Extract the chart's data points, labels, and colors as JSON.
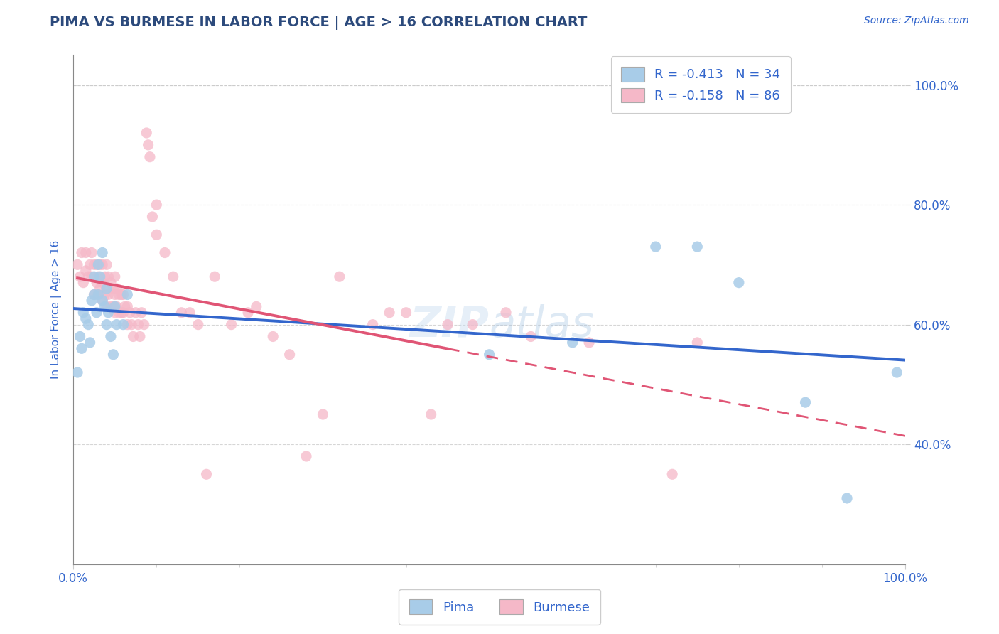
{
  "title": "PIMA VS BURMESE IN LABOR FORCE | AGE > 16 CORRELATION CHART",
  "source_text": "Source: ZipAtlas.com",
  "ylabel": "In Labor Force | Age > 16",
  "xlim": [
    0.0,
    1.0
  ],
  "ylim": [
    0.2,
    1.05
  ],
  "y_ticks": [
    0.4,
    0.6,
    0.8,
    1.0
  ],
  "pima_R": -0.413,
  "pima_N": 34,
  "burmese_R": -0.158,
  "burmese_N": 86,
  "pima_color": "#a8cce8",
  "burmese_color": "#f5b8c8",
  "pima_line_color": "#3366cc",
  "burmese_line_color": "#e05575",
  "background_color": "#ffffff",
  "grid_color": "#cccccc",
  "title_color": "#2c4a7c",
  "axis_label_color": "#3366cc",
  "pima_x": [
    0.005,
    0.008,
    0.01,
    0.012,
    0.015,
    0.018,
    0.02,
    0.022,
    0.025,
    0.025,
    0.028,
    0.03,
    0.03,
    0.032,
    0.035,
    0.035,
    0.038,
    0.04,
    0.04,
    0.042,
    0.045,
    0.048,
    0.05,
    0.052,
    0.06,
    0.065,
    0.5,
    0.6,
    0.7,
    0.75,
    0.8,
    0.88,
    0.93,
    0.99
  ],
  "pima_y": [
    0.52,
    0.58,
    0.56,
    0.62,
    0.61,
    0.6,
    0.57,
    0.64,
    0.65,
    0.68,
    0.62,
    0.65,
    0.7,
    0.68,
    0.64,
    0.72,
    0.63,
    0.6,
    0.66,
    0.62,
    0.58,
    0.55,
    0.63,
    0.6,
    0.6,
    0.65,
    0.55,
    0.57,
    0.73,
    0.73,
    0.67,
    0.47,
    0.31,
    0.52
  ],
  "burmese_x": [
    0.005,
    0.008,
    0.01,
    0.012,
    0.015,
    0.015,
    0.018,
    0.02,
    0.022,
    0.022,
    0.025,
    0.025,
    0.028,
    0.028,
    0.03,
    0.03,
    0.032,
    0.032,
    0.035,
    0.035,
    0.035,
    0.038,
    0.038,
    0.04,
    0.04,
    0.04,
    0.042,
    0.042,
    0.045,
    0.045,
    0.048,
    0.048,
    0.05,
    0.05,
    0.05,
    0.052,
    0.052,
    0.055,
    0.055,
    0.058,
    0.058,
    0.06,
    0.06,
    0.062,
    0.065,
    0.065,
    0.068,
    0.07,
    0.072,
    0.075,
    0.078,
    0.08,
    0.082,
    0.085,
    0.088,
    0.09,
    0.092,
    0.095,
    0.1,
    0.1,
    0.11,
    0.12,
    0.13,
    0.14,
    0.15,
    0.16,
    0.17,
    0.19,
    0.21,
    0.22,
    0.24,
    0.26,
    0.28,
    0.3,
    0.32,
    0.36,
    0.38,
    0.4,
    0.43,
    0.45,
    0.48,
    0.52,
    0.55,
    0.62,
    0.72,
    0.75
  ],
  "burmese_y": [
    0.7,
    0.68,
    0.72,
    0.67,
    0.69,
    0.72,
    0.68,
    0.7,
    0.68,
    0.72,
    0.65,
    0.7,
    0.67,
    0.7,
    0.65,
    0.68,
    0.66,
    0.7,
    0.64,
    0.67,
    0.7,
    0.65,
    0.68,
    0.63,
    0.66,
    0.7,
    0.65,
    0.68,
    0.63,
    0.67,
    0.63,
    0.66,
    0.62,
    0.65,
    0.68,
    0.63,
    0.66,
    0.62,
    0.65,
    0.62,
    0.65,
    0.62,
    0.65,
    0.63,
    0.6,
    0.63,
    0.62,
    0.6,
    0.58,
    0.62,
    0.6,
    0.58,
    0.62,
    0.6,
    0.92,
    0.9,
    0.88,
    0.78,
    0.75,
    0.8,
    0.72,
    0.68,
    0.62,
    0.62,
    0.6,
    0.35,
    0.68,
    0.6,
    0.62,
    0.63,
    0.58,
    0.55,
    0.38,
    0.45,
    0.68,
    0.6,
    0.62,
    0.62,
    0.45,
    0.6,
    0.6,
    0.62,
    0.58,
    0.57,
    0.35,
    0.57
  ],
  "burmese_line_x_start": 0.005,
  "burmese_line_x_solid_end": 0.45,
  "burmese_line_x_end": 1.0
}
